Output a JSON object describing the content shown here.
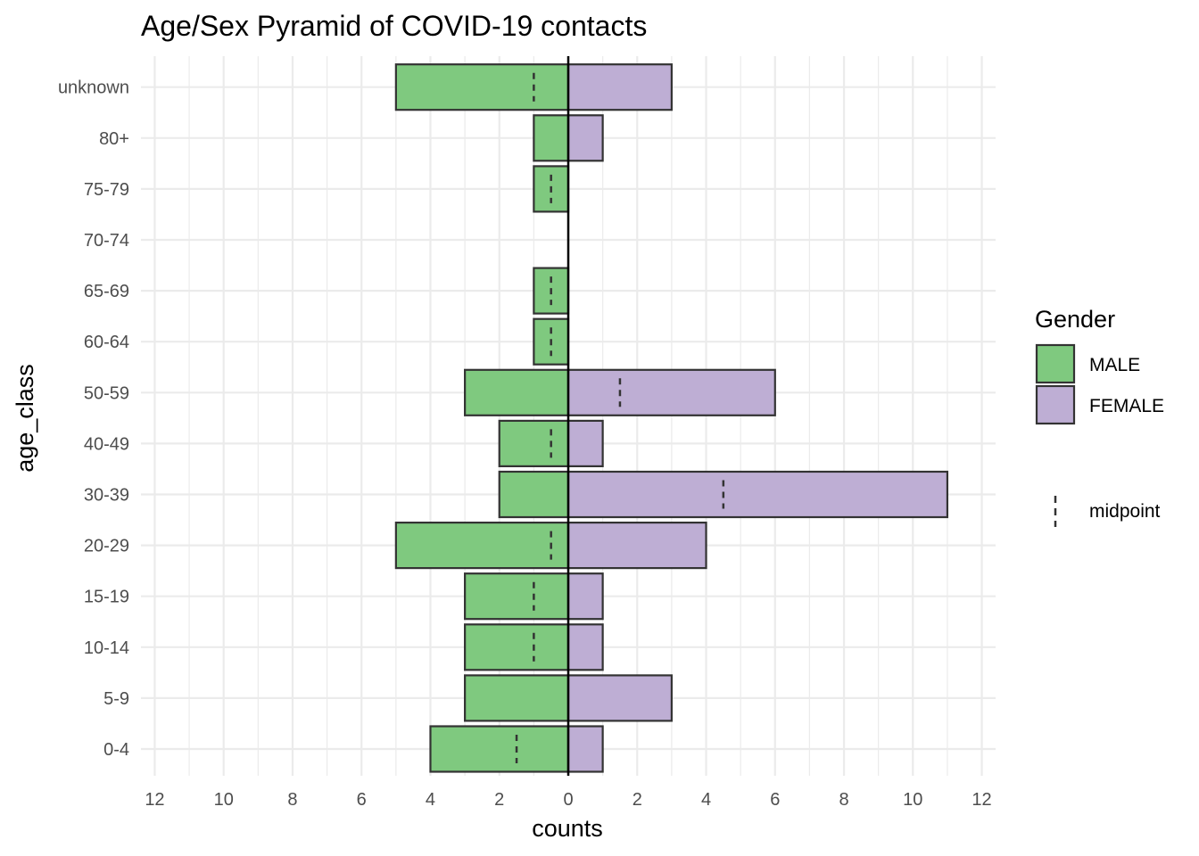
{
  "chart_data": {
    "type": "bar",
    "orientation": "horizontal-pyramid",
    "title": "Age/Sex Pyramid of COVID-19 contacts",
    "xlabel": "counts",
    "ylabel": "age_class",
    "xlim": [
      -12.4,
      12.4
    ],
    "x_ticks": [
      -12,
      -10,
      -8,
      -6,
      -4,
      -2,
      0,
      2,
      4,
      6,
      8,
      10,
      12
    ],
    "x_tick_labels": [
      "12",
      "10",
      "8",
      "6",
      "4",
      "2",
      "0",
      "2",
      "4",
      "6",
      "8",
      "10",
      "12"
    ],
    "categories": [
      "0-4",
      "5-9",
      "10-14",
      "15-19",
      "20-29",
      "30-39",
      "40-49",
      "50-59",
      "60-64",
      "65-69",
      "70-74",
      "75-79",
      "80+",
      "unknown"
    ],
    "series": [
      {
        "name": "MALE",
        "color": "#7fc97f",
        "values": [
          4,
          3,
          3,
          3,
          5,
          2,
          2,
          3,
          1,
          1,
          0,
          1,
          1,
          5
        ]
      },
      {
        "name": "FEMALE",
        "color": "#beaed4",
        "values": [
          1,
          3,
          1,
          1,
          4,
          11,
          1,
          6,
          0,
          0,
          0,
          0,
          1,
          3
        ]
      }
    ],
    "midpoint": [
      -1.5,
      0,
      -1,
      -1,
      -0.5,
      4.5,
      -0.5,
      1.5,
      -0.5,
      -0.5,
      null,
      -0.5,
      0,
      -1
    ],
    "grid": true,
    "legend": {
      "title": "Gender",
      "placement": "right",
      "items": [
        "MALE",
        "FEMALE"
      ],
      "midpoint_label": "midpoint"
    }
  }
}
